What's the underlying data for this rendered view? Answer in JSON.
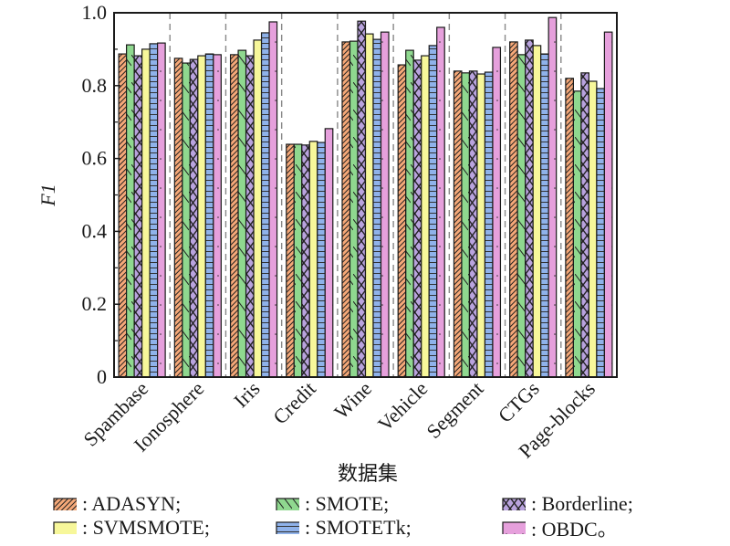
{
  "chart_data": {
    "type": "bar",
    "title": "",
    "xlabel": "数据集",
    "ylabel": "F1",
    "ylim": [
      0,
      1.0
    ],
    "yticks": [
      "0",
      "0.2",
      "0.4",
      "0.6",
      "0.8",
      "1.0"
    ],
    "ytick_values": [
      0,
      0.2,
      0.4,
      0.6,
      0.8,
      1.0
    ],
    "minor_tick_step": 0.1,
    "grid": false,
    "group_separators": "dashed vertical lines between groups",
    "legend_position": "bottom",
    "categories": [
      "Spambase",
      "Ionosphere",
      "Iris",
      "Credit",
      "Wine",
      "Vehicle",
      "Segment",
      "CTGs",
      "Page-blocks"
    ],
    "series": [
      {
        "name": "ADASYN",
        "legend_label": ": ADASYN;",
        "color": "#f5a878",
        "pattern": "diagonal-hatch",
        "values": [
          0.887,
          0.875,
          0.885,
          0.639,
          0.92,
          0.857,
          0.84,
          0.92,
          0.82
        ]
      },
      {
        "name": "SMOTE",
        "legend_label": ": SMOTE;",
        "color": "#8fd88f",
        "pattern": "single-diagonal",
        "values": [
          0.912,
          0.862,
          0.897,
          0.639,
          0.922,
          0.897,
          0.835,
          0.885,
          0.785
        ]
      },
      {
        "name": "Borderline",
        "legend_label": ": Borderline;",
        "color": "#b9a3de",
        "pattern": "cross-hatch",
        "values": [
          0.882,
          0.872,
          0.882,
          0.637,
          0.977,
          0.87,
          0.84,
          0.925,
          0.835
        ]
      },
      {
        "name": "SVMSMOTE",
        "legend_label": ": SVMSMOTE;",
        "color": "#f7f79a",
        "pattern": "none",
        "values": [
          0.9,
          0.882,
          0.925,
          0.647,
          0.942,
          0.882,
          0.832,
          0.91,
          0.812
        ]
      },
      {
        "name": "SMOTETk",
        "legend_label": ": SMOTETk;",
        "color": "#8fb2ea",
        "pattern": "horizontal-lines",
        "values": [
          0.915,
          0.887,
          0.945,
          0.644,
          0.927,
          0.91,
          0.837,
          0.887,
          0.792
        ]
      },
      {
        "name": "OBDC",
        "legend_label": ": OBDC。",
        "color": "#e6a0dc",
        "pattern": "dots",
        "values": [
          0.917,
          0.885,
          0.975,
          0.682,
          0.947,
          0.96,
          0.905,
          0.987,
          0.947
        ]
      }
    ]
  },
  "legend_layout": {
    "rows": [
      [
        "ADASYN",
        "SMOTE",
        "Borderline"
      ],
      [
        "SVMSMOTE",
        "SMOTETk",
        "OBDC"
      ]
    ]
  }
}
